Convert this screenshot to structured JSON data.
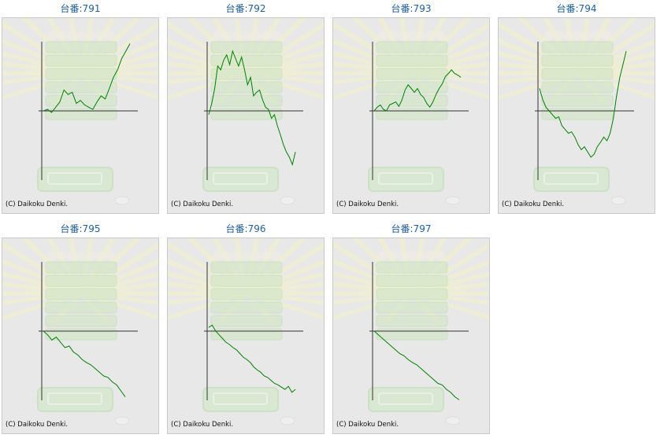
{
  "copyright": "(C) Daikoku Denki.",
  "colors": {
    "line": "#008000",
    "axis": "#333333",
    "title": "#1f5e9e"
  },
  "cards": [
    {
      "title": "台番:791"
    },
    {
      "title": "台番:792"
    },
    {
      "title": "台番:793"
    },
    {
      "title": "台番:794"
    },
    {
      "title": "台番:795"
    },
    {
      "title": "台番:796"
    },
    {
      "title": "台番:797"
    }
  ],
  "chart_data": [
    {
      "type": "line",
      "title": "台番:791",
      "ylim": [
        -1,
        1
      ],
      "values": [
        0,
        0.02,
        -0.02,
        0.05,
        0.12,
        0.28,
        0.22,
        0.25,
        0.1,
        0.14,
        0.08,
        0.05,
        0.02,
        0.12,
        0.2,
        0.16,
        0.3,
        0.45,
        0.55,
        0.7,
        0.8,
        0.9
      ]
    },
    {
      "type": "line",
      "title": "台番:792",
      "ylim": [
        -1,
        1
      ],
      "values": [
        -0.05,
        0.1,
        0.3,
        0.6,
        0.55,
        0.68,
        0.75,
        0.62,
        0.8,
        0.7,
        0.6,
        0.72,
        0.55,
        0.35,
        0.45,
        0.2,
        0.25,
        0.28,
        0.15,
        0.05,
        0.02,
        -0.1,
        -0.05,
        -0.2,
        -0.32,
        -0.45,
        -0.55,
        -0.62,
        -0.72,
        -0.55
      ]
    },
    {
      "type": "line",
      "title": "台番:793",
      "ylim": [
        -1,
        1
      ],
      "values": [
        0,
        0.05,
        0.08,
        0.02,
        0.0,
        0.08,
        0.1,
        0.12,
        0.06,
        0.15,
        0.28,
        0.35,
        0.3,
        0.25,
        0.3,
        0.22,
        0.18,
        0.1,
        0.05,
        0.12,
        0.22,
        0.3,
        0.36,
        0.46,
        0.5,
        0.55,
        0.5,
        0.48,
        0.45
      ]
    },
    {
      "type": "line",
      "title": "台番:794",
      "ylim": [
        -1,
        1
      ],
      "values": [
        0.3,
        0.15,
        0.05,
        0.0,
        -0.05,
        -0.1,
        -0.08,
        -0.2,
        -0.25,
        -0.3,
        -0.28,
        -0.35,
        -0.45,
        -0.52,
        -0.48,
        -0.55,
        -0.62,
        -0.58,
        -0.48,
        -0.42,
        -0.35,
        -0.4,
        -0.3,
        -0.1,
        0.2,
        0.45,
        0.62,
        0.8
      ]
    },
    {
      "type": "line",
      "title": "台番:795",
      "ylim": [
        -1,
        1
      ],
      "values": [
        0,
        -0.05,
        -0.12,
        -0.08,
        -0.15,
        -0.22,
        -0.2,
        -0.28,
        -0.32,
        -0.38,
        -0.42,
        -0.45,
        -0.5,
        -0.55,
        -0.6,
        -0.62,
        -0.68,
        -0.72,
        -0.8,
        -0.88
      ]
    },
    {
      "type": "line",
      "title": "台番:796",
      "ylim": [
        -1,
        1
      ],
      "values": [
        0.05,
        0.08,
        0.0,
        -0.05,
        -0.1,
        -0.15,
        -0.18,
        -0.22,
        -0.25,
        -0.3,
        -0.35,
        -0.38,
        -0.42,
        -0.48,
        -0.52,
        -0.55,
        -0.6,
        -0.62,
        -0.66,
        -0.7,
        -0.72,
        -0.75,
        -0.78,
        -0.74,
        -0.82,
        -0.78
      ]
    },
    {
      "type": "line",
      "title": "台番:797",
      "ylim": [
        -1,
        1
      ],
      "values": [
        0,
        -0.05,
        -0.1,
        -0.15,
        -0.2,
        -0.25,
        -0.3,
        -0.33,
        -0.38,
        -0.42,
        -0.45,
        -0.5,
        -0.55,
        -0.6,
        -0.65,
        -0.7,
        -0.72,
        -0.78,
        -0.82,
        -0.88,
        -0.92
      ]
    }
  ]
}
